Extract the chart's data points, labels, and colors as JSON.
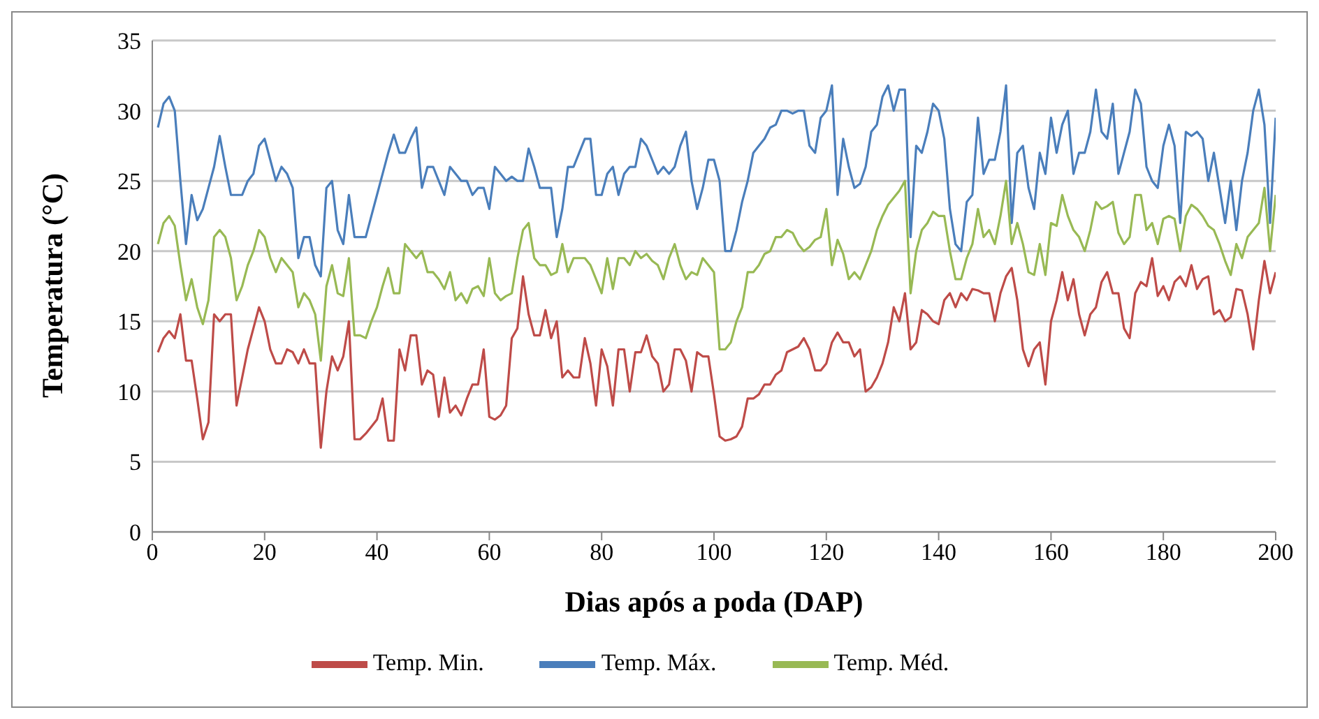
{
  "chart_data": {
    "type": "line",
    "xlabel": "Dias após a poda (DAP)",
    "ylabel": "Temperatura (°C)",
    "x": [
      1,
      2,
      3,
      4,
      5,
      6,
      7,
      8,
      9,
      10,
      11,
      12,
      13,
      14,
      15,
      16,
      17,
      18,
      19,
      20,
      21,
      22,
      23,
      24,
      25,
      26,
      27,
      28,
      29,
      30,
      31,
      32,
      33,
      34,
      35,
      36,
      37,
      38,
      39,
      40,
      41,
      42,
      43,
      44,
      45,
      46,
      47,
      48,
      49,
      50,
      51,
      52,
      53,
      54,
      55,
      56,
      57,
      58,
      59,
      60,
      61,
      62,
      63,
      64,
      65,
      66,
      67,
      68,
      69,
      70,
      71,
      72,
      73,
      74,
      75,
      76,
      77,
      78,
      79,
      80,
      81,
      82,
      83,
      84,
      85,
      86,
      87,
      88,
      89,
      90,
      91,
      92,
      93,
      94,
      95,
      96,
      97,
      98,
      99,
      100,
      101,
      102,
      103,
      104,
      105,
      106,
      107,
      108,
      109,
      110,
      111,
      112,
      113,
      114,
      115,
      116,
      117,
      118,
      119,
      120,
      121,
      122,
      123,
      124,
      125,
      126,
      127,
      128,
      129,
      130,
      131,
      132,
      133,
      134,
      135,
      136,
      137,
      138,
      139,
      140,
      141,
      142,
      143,
      144,
      145,
      146,
      147,
      148,
      149,
      150,
      151,
      152,
      153,
      154,
      155,
      156,
      157,
      158,
      159,
      160,
      161,
      162,
      163,
      164,
      165,
      166,
      167,
      168,
      169,
      170,
      171,
      172,
      173,
      174,
      175,
      176,
      177,
      178,
      179,
      180,
      181,
      182,
      183,
      184,
      185,
      186,
      187,
      188,
      189,
      190,
      191,
      192,
      193,
      194,
      195,
      196,
      197,
      198,
      199,
      200
    ],
    "series": [
      {
        "name": "Temp. Máx.",
        "color": "#4a7ebb",
        "values": [
          28.8,
          30.5,
          31,
          30,
          25,
          20.5,
          24,
          22.2,
          23,
          24.5,
          26,
          28.2,
          26,
          24,
          24,
          24,
          25,
          25.5,
          27.5,
          28,
          26.5,
          25,
          26,
          25.5,
          24.5,
          19.5,
          21,
          21,
          19,
          18.2,
          24.5,
          25,
          21.5,
          20.5,
          24,
          21,
          21,
          21,
          22.5,
          24,
          25.5,
          27,
          28.3,
          27,
          27,
          28,
          28.8,
          24.5,
          26,
          26,
          25,
          24,
          26,
          25.5,
          25,
          25,
          24,
          24.5,
          24.5,
          23,
          26,
          25.5,
          25,
          25.3,
          25,
          25,
          27.3,
          26,
          24.5,
          24.5,
          24.5,
          21,
          23,
          26,
          26,
          27,
          28,
          28,
          24,
          24,
          25.5,
          26,
          24,
          25.5,
          26,
          26,
          28,
          27.5,
          26.5,
          25.5,
          26,
          25.5,
          26,
          27.5,
          28.5,
          25,
          23,
          24.5,
          26.5,
          26.5,
          25,
          20,
          20,
          21.5,
          23.5,
          25,
          27,
          27.5,
          28,
          28.8,
          29,
          30,
          30,
          29.8,
          30,
          30,
          27.5,
          27,
          29.5,
          30,
          31.8,
          24,
          28,
          26,
          24.5,
          24.8,
          26,
          28.5,
          29,
          31,
          31.8,
          30,
          31.5,
          31.5,
          21,
          27.5,
          27,
          28.5,
          30.5,
          30,
          28,
          23,
          20.5,
          20,
          23.5,
          24,
          29.5,
          25.5,
          26.5,
          26.5,
          28.5,
          31.8,
          22,
          27,
          27.5,
          24.5,
          23,
          27,
          25.5,
          29.5,
          27,
          29,
          30,
          25.5,
          27,
          27,
          28.5,
          31.5,
          28.5,
          28,
          30.5,
          25.5,
          27,
          28.5,
          31.5,
          30.5,
          26,
          25,
          24.5,
          27.5,
          29,
          27.5,
          22,
          28.5,
          28.2,
          28.5,
          28,
          25,
          27,
          24.5,
          22,
          25,
          21.5,
          25,
          27,
          30,
          31.5,
          29,
          22,
          29.5
        ]
      },
      {
        "name": "Temp. Min.",
        "color": "#be4b48",
        "values": [
          12.8,
          13.8,
          14.3,
          13.8,
          15.5,
          12.2,
          12.2,
          9.5,
          6.6,
          7.8,
          15.5,
          15,
          15.5,
          15.5,
          9,
          11,
          13,
          14.5,
          16,
          15,
          13,
          12,
          12,
          13,
          12.8,
          12,
          13,
          12,
          12,
          6,
          10,
          12.5,
          11.5,
          12.5,
          15,
          6.6,
          6.6,
          7,
          7.5,
          8,
          9.5,
          6.5,
          6.5,
          13,
          11.5,
          14,
          14,
          10.5,
          11.5,
          11.2,
          8.2,
          11,
          8.5,
          9,
          8.3,
          9.5,
          10.5,
          10.5,
          13,
          8.2,
          8,
          8.3,
          9,
          13.8,
          14.5,
          18.2,
          15.5,
          14,
          14,
          15.8,
          13.8,
          15,
          11,
          11.5,
          11,
          11,
          13.8,
          12,
          9,
          13,
          11.8,
          9,
          13,
          13,
          10,
          12.8,
          12.8,
          14,
          12.5,
          12,
          10,
          10.5,
          13,
          13,
          12.2,
          10,
          12.8,
          12.5,
          12.5,
          9.8,
          6.8,
          6.5,
          6.6,
          6.8,
          7.5,
          9.5,
          9.5,
          9.8,
          10.5,
          10.5,
          11.2,
          11.5,
          12.8,
          13,
          13.2,
          13.8,
          13,
          11.5,
          11.5,
          12,
          13.5,
          14.2,
          13.5,
          13.5,
          12.5,
          13,
          10,
          10.3,
          11,
          12,
          13.5,
          16,
          15,
          17,
          13,
          13.5,
          15.8,
          15.5,
          15,
          14.8,
          16.5,
          17,
          16,
          17,
          16.5,
          17.3,
          17.2,
          17,
          17,
          15,
          17,
          18.2,
          18.8,
          16.5,
          13,
          11.8,
          13,
          13.5,
          10.5,
          15,
          16.5,
          18.5,
          16.5,
          18,
          15.5,
          14,
          15.5,
          16,
          17.8,
          18.5,
          17,
          17,
          14.5,
          13.8,
          17,
          17.8,
          17.5,
          19.5,
          16.8,
          17.5,
          16.5,
          17.8,
          18.2,
          17.5,
          19,
          17.3,
          18,
          18.2,
          15.5,
          15.8,
          15,
          15.3,
          17.3,
          17.2,
          15.5,
          13,
          16.5,
          19.3,
          17,
          18.5
        ]
      },
      {
        "name": "Temp. Méd.",
        "color": "#98b954",
        "values": [
          20.5,
          22,
          22.5,
          21.8,
          19,
          16.5,
          18,
          16,
          14.8,
          16.5,
          21,
          21.5,
          21,
          19.5,
          16.5,
          17.5,
          19,
          20,
          21.5,
          21,
          19.5,
          18.5,
          19.5,
          19,
          18.5,
          16,
          17,
          16.5,
          15.5,
          12.2,
          17.5,
          19,
          17,
          16.8,
          19.5,
          14,
          14,
          13.8,
          15,
          16,
          17.5,
          18.8,
          17,
          17,
          20.5,
          20,
          19.5,
          20,
          18.5,
          18.5,
          18,
          17.3,
          18.5,
          16.5,
          17,
          16.3,
          17.3,
          17.5,
          16.8,
          19.5,
          17,
          16.5,
          16.8,
          17,
          19.5,
          21.5,
          22,
          19.5,
          19,
          19,
          18.3,
          18.5,
          20.5,
          18.5,
          19.5,
          19.5,
          19.5,
          19,
          18,
          17,
          19.5,
          17.3,
          19.5,
          19.5,
          19,
          20,
          19.5,
          19.8,
          19.3,
          19,
          18,
          19.5,
          20.5,
          19,
          18,
          18.5,
          18.3,
          19.5,
          19,
          18.5,
          13,
          13,
          13.5,
          15,
          16,
          18.5,
          18.5,
          19,
          19.8,
          20,
          21,
          21,
          21.5,
          21.3,
          20.5,
          20,
          20.3,
          20.8,
          21,
          23,
          19,
          20.8,
          19.8,
          18,
          18.5,
          18,
          19,
          20,
          21.5,
          22.5,
          23.3,
          23.8,
          24.3,
          25,
          17,
          20,
          21.5,
          22,
          22.8,
          22.5,
          22.5,
          20,
          18,
          18,
          19.5,
          20.5,
          23,
          21,
          21.5,
          20.5,
          22.5,
          25,
          20.5,
          22,
          20.5,
          18.5,
          18.3,
          20.5,
          18.3,
          22,
          21.8,
          24,
          22.5,
          21.5,
          21,
          20,
          21.5,
          23.5,
          23,
          23.2,
          23.5,
          21.3,
          20.5,
          21,
          24,
          24,
          21.5,
          22,
          20.5,
          22.3,
          22.5,
          22.3,
          20,
          22.5,
          23.3,
          23,
          22.5,
          21.8,
          21.5,
          20.5,
          19.3,
          18.3,
          20.5,
          19.5,
          21,
          21.5,
          22,
          24.5,
          20,
          24
        ]
      }
    ],
    "xlim": [
      0,
      200
    ],
    "xticks": [
      0,
      20,
      40,
      60,
      80,
      100,
      120,
      140,
      160,
      180,
      200
    ],
    "ylim": [
      0,
      35
    ],
    "yticks": [
      0,
      5,
      10,
      15,
      20,
      25,
      30,
      35
    ],
    "grid": "y",
    "legend": "bottom",
    "marker": "none",
    "line_style": "solid"
  }
}
